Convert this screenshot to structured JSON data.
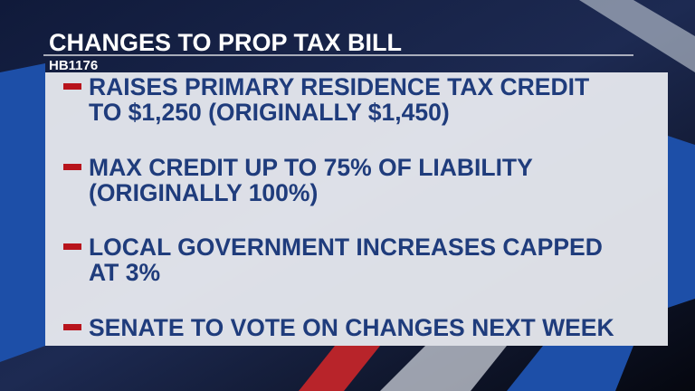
{
  "header": {
    "title": "CHANGES TO PROP TAX BILL",
    "subtitle": "HB1176"
  },
  "bullets": [
    {
      "lines": [
        "RAISES PRIMARY RESIDENCE TAX CREDIT",
        "TO $1,250 (ORIGINALLY $1,450)"
      ]
    },
    {
      "lines": [
        "MAX CREDIT UP TO 75% OF LIABILITY",
        "(ORIGINALLY 100%)"
      ]
    },
    {
      "lines": [
        "LOCAL GOVERNMENT INCREASES CAPPED",
        "AT 3%"
      ]
    },
    {
      "lines": [
        "SENATE TO VOTE ON CHANGES NEXT WEEK"
      ]
    }
  ]
}
